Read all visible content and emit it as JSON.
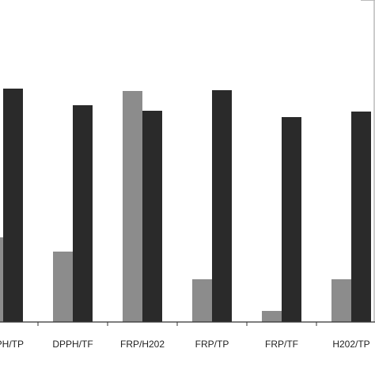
{
  "chart_data": {
    "type": "bar",
    "categories": [
      "DPPH/TP",
      "DPPH/TF",
      "FRP/H202",
      "FRP/TP",
      "FRP/TF",
      "H202/TP"
    ],
    "series": [
      {
        "color": "#8c8c8c",
        "values": [
          107,
          89,
          292,
          54,
          14,
          54
        ]
      },
      {
        "color": "#2a2a2a",
        "values": [
          295,
          274,
          267,
          293,
          259,
          266
        ]
      }
    ],
    "ylim": [
      0,
      300
    ]
  }
}
